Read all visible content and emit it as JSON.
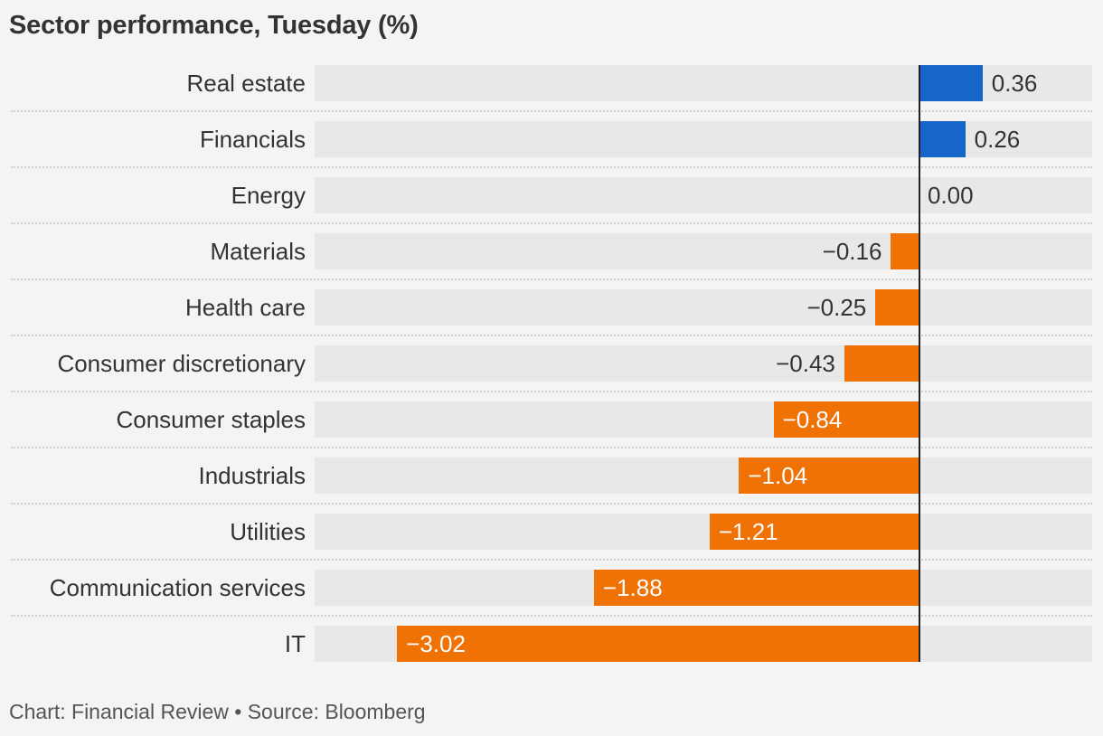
{
  "header": {
    "title": "Sector performance, Tuesday (%)"
  },
  "footer": {
    "credit": "Chart: Financial Review • Source: Bloomberg"
  },
  "colors": {
    "positive": "#1566c8",
    "negative": "#f07104",
    "row_background": "#e8e8e8",
    "page_background": "#f4f4f4"
  },
  "chart_data": {
    "type": "bar",
    "orientation": "horizontal",
    "title": "Sector performance, Tuesday (%)",
    "categories": [
      "Real estate",
      "Financials",
      "Energy",
      "Materials",
      "Health care",
      "Consumer discretionary",
      "Consumer staples",
      "Industrials",
      "Utilities",
      "Communication services",
      "IT"
    ],
    "values": [
      0.36,
      0.26,
      0.0,
      -0.16,
      -0.25,
      -0.43,
      -0.84,
      -1.04,
      -1.21,
      -1.88,
      -3.02
    ],
    "value_labels": [
      "0.36",
      "0.26",
      "0.00",
      "−0.16",
      "−0.25",
      "−0.43",
      "−0.84",
      "−1.04",
      "−1.21",
      "−1.88",
      "−3.02"
    ],
    "xlim": [
      -3.5,
      1.0
    ],
    "grid": false,
    "legend": "none"
  }
}
